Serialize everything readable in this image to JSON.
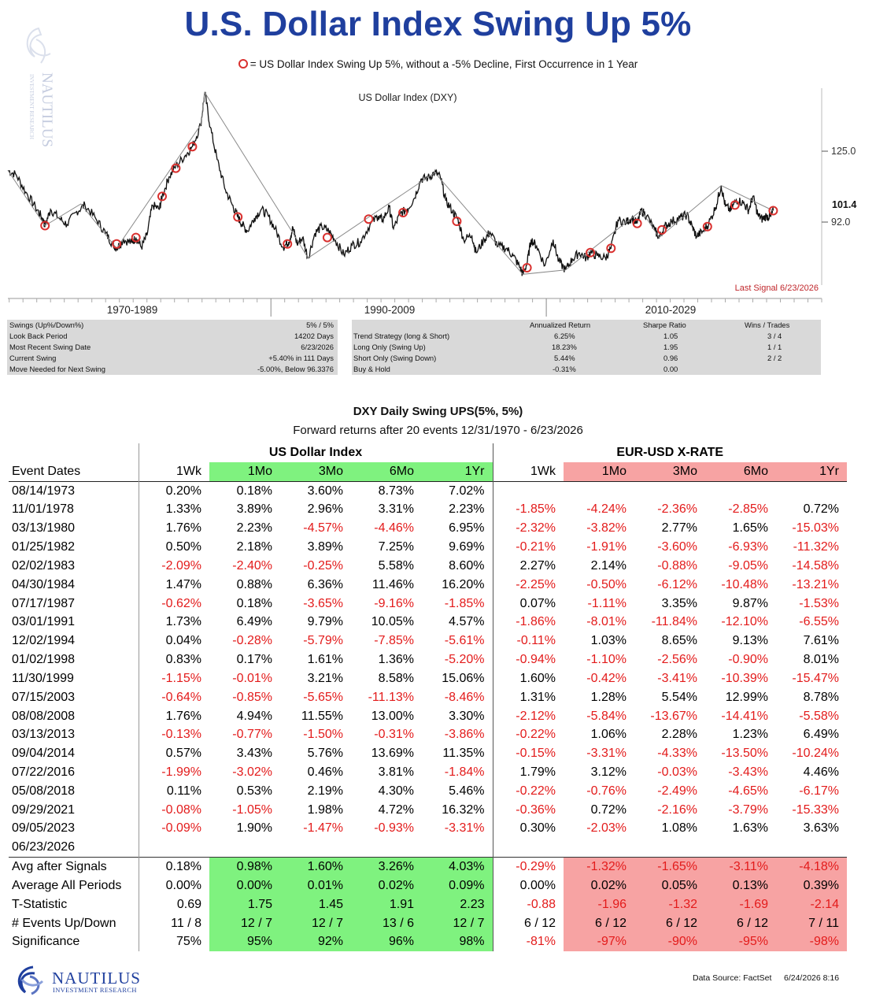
{
  "title": "U.S. Dollar Index Swing Up 5%",
  "legend_note": "= US Dollar Index  Swing Up 5%, without a -5% Decline, First Occurrence in 1 Year",
  "brand": {
    "name": "NAUTILUS",
    "sub": "INVESTMENT RESEARCH",
    "watermark_name": "NAUTILUS",
    "watermark_sub": "INVESTMENT RESEARCH"
  },
  "colors": {
    "title": "#1f3f9e",
    "signal_ring": "#d9312f",
    "line": "#111111",
    "trend": "#8a8a8a",
    "green_fill": "#7ff27f",
    "red_fill": "#f7a3a3",
    "negative_text": "#e31b1b",
    "last_signal_text": "#c0262b"
  },
  "chart_data": {
    "type": "line",
    "title": "US Dollar Index (DXY)",
    "y_ticks": [
      125.0,
      92.0
    ],
    "y_tick_labels": [
      "125.0",
      "92.0"
    ],
    "last_value_label": "101.4",
    "last_signal_note": "Last Signal 6/23/2026",
    "era_labels": [
      "1970-1989",
      "1990-2009",
      "2010-2029"
    ],
    "x_range": [
      1970.9,
      2030.0
    ],
    "y_range": [
      67,
      158
    ],
    "grid": false,
    "series": [
      {
        "values": [
          [
            1970.9,
            120.0
          ],
          [
            1971.5,
            118.0
          ],
          [
            1972.2,
            110.0
          ],
          [
            1972.9,
            103.0
          ],
          [
            1973.4,
            98.0
          ],
          [
            1973.6,
            94.5
          ],
          [
            1974.0,
            102.0
          ],
          [
            1974.6,
            98.0
          ],
          [
            1975.2,
            95.0
          ],
          [
            1975.9,
            101.0
          ],
          [
            1976.5,
            104.0
          ],
          [
            1977.3,
            97.5
          ],
          [
            1978.0,
            91.0
          ],
          [
            1978.5,
            86.0
          ],
          [
            1978.8,
            84.0
          ],
          [
            1979.3,
            88.0
          ],
          [
            1979.9,
            86.5
          ],
          [
            1980.2,
            89.0
          ],
          [
            1980.6,
            84.5
          ],
          [
            1981.0,
            90.0
          ],
          [
            1981.4,
            104.0
          ],
          [
            1981.9,
            102.0
          ],
          [
            1982.1,
            108.0
          ],
          [
            1982.6,
            117.0
          ],
          [
            1983.1,
            122.0
          ],
          [
            1983.8,
            127.0
          ],
          [
            1984.3,
            131.0
          ],
          [
            1984.9,
            141.0
          ],
          [
            1985.2,
            156.0
          ],
          [
            1985.6,
            140.0
          ],
          [
            1986.1,
            125.0
          ],
          [
            1986.7,
            111.0
          ],
          [
            1987.2,
            104.0
          ],
          [
            1987.6,
            98.5
          ],
          [
            1987.9,
            95.0
          ],
          [
            1988.3,
            92.0
          ],
          [
            1988.8,
            98.0
          ],
          [
            1989.3,
            102.0
          ],
          [
            1989.8,
            99.0
          ],
          [
            1990.3,
            93.0
          ],
          [
            1990.9,
            84.5
          ],
          [
            1991.3,
            87.0
          ],
          [
            1991.6,
            93.5
          ],
          [
            1991.9,
            86.0
          ],
          [
            1992.3,
            89.0
          ],
          [
            1992.7,
            79.5
          ],
          [
            1993.2,
            91.0
          ],
          [
            1993.7,
            94.0
          ],
          [
            1994.2,
            92.0
          ],
          [
            1994.7,
            87.5
          ],
          [
            1995.3,
            81.0
          ],
          [
            1995.9,
            85.5
          ],
          [
            1996.5,
            87.0
          ],
          [
            1997.2,
            95.0
          ],
          [
            1997.8,
            99.0
          ],
          [
            1998.1,
            97.0
          ],
          [
            1998.6,
            103.0
          ],
          [
            1998.9,
            93.0
          ],
          [
            1999.4,
            100.0
          ],
          [
            1999.9,
            102.0
          ],
          [
            2000.4,
            107.0
          ],
          [
            2000.9,
            116.0
          ],
          [
            2001.4,
            116.5
          ],
          [
            2001.9,
            119.0
          ],
          [
            2002.3,
            117.0
          ],
          [
            2002.7,
            106.0
          ],
          [
            2003.2,
            101.0
          ],
          [
            2003.6,
            97.0
          ],
          [
            2004.0,
            88.0
          ],
          [
            2004.6,
            90.0
          ],
          [
            2004.9,
            82.0
          ],
          [
            2005.5,
            88.0
          ],
          [
            2005.9,
            91.5
          ],
          [
            2006.5,
            85.0
          ],
          [
            2007.1,
            84.0
          ],
          [
            2007.6,
            80.5
          ],
          [
            2008.1,
            75.0
          ],
          [
            2008.3,
            72.0
          ],
          [
            2008.6,
            77.0
          ],
          [
            2008.9,
            88.0
          ],
          [
            2009.3,
            85.0
          ],
          [
            2009.9,
            76.0
          ],
          [
            2010.5,
            88.0
          ],
          [
            2010.9,
            78.0
          ],
          [
            2011.4,
            74.0
          ],
          [
            2011.9,
            79.0
          ],
          [
            2012.4,
            82.0
          ],
          [
            2012.9,
            79.5
          ],
          [
            2013.2,
            82.0
          ],
          [
            2013.7,
            80.5
          ],
          [
            2014.3,
            79.5
          ],
          [
            2014.7,
            84.0
          ],
          [
            2015.2,
            97.0
          ],
          [
            2015.8,
            96.0
          ],
          [
            2016.2,
            98.0
          ],
          [
            2016.6,
            95.5
          ],
          [
            2016.9,
            101.5
          ],
          [
            2017.3,
            99.0
          ],
          [
            2017.9,
            92.0
          ],
          [
            2018.2,
            89.0
          ],
          [
            2018.6,
            94.0
          ],
          [
            2019.1,
            96.5
          ],
          [
            2019.7,
            98.0
          ],
          [
            2020.2,
            99.5
          ],
          [
            2020.6,
            94.0
          ],
          [
            2020.9,
            89.5
          ],
          [
            2021.4,
            92.0
          ],
          [
            2021.8,
            95.5
          ],
          [
            2022.3,
            103.0
          ],
          [
            2022.7,
            113.0
          ],
          [
            2023.0,
            103.5
          ],
          [
            2023.4,
            101.5
          ],
          [
            2023.8,
            106.5
          ],
          [
            2024.3,
            105.0
          ],
          [
            2024.7,
            101.5
          ],
          [
            2025.0,
            108.0
          ],
          [
            2025.4,
            99.0
          ],
          [
            2025.7,
            97.5
          ],
          [
            2026.0,
            99.0
          ],
          [
            2026.3,
            98.5
          ],
          [
            2026.48,
            101.4
          ]
        ]
      },
      {
        "values": [
          [
            1970.9,
            120.0
          ],
          [
            1973.6,
            94.5
          ],
          [
            1976.2,
            104.5
          ],
          [
            1978.8,
            84.0
          ],
          [
            1984.9,
            141.0
          ],
          [
            1985.2,
            156.0
          ],
          [
            1991.8,
            89.0
          ],
          [
            1992.7,
            79.5
          ],
          [
            2001.9,
            119.0
          ],
          [
            2008.3,
            72.0
          ],
          [
            2011.4,
            74.0
          ],
          [
            2016.9,
            101.5
          ],
          [
            2018.2,
            89.0
          ],
          [
            2022.7,
            113.0
          ],
          [
            2026.48,
            101.4
          ]
        ]
      }
    ],
    "signals": [
      [
        1973.6,
        94.5
      ],
      [
        1978.8,
        86.0
      ],
      [
        1980.2,
        89.0
      ],
      [
        1982.1,
        108.0
      ],
      [
        1983.1,
        121.0
      ],
      [
        1984.3,
        131.0
      ],
      [
        1987.6,
        98.5
      ],
      [
        1991.2,
        86.0
      ],
      [
        1994.1,
        89.0
      ],
      [
        1997.1,
        97.5
      ],
      [
        1999.6,
        100.5
      ],
      [
        2003.5,
        96.5
      ],
      [
        2008.6,
        75.0
      ],
      [
        2013.2,
        82.0
      ],
      [
        2014.7,
        84.0
      ],
      [
        2016.6,
        95.5
      ],
      [
        2018.4,
        92.5
      ],
      [
        2021.7,
        94.0
      ],
      [
        2023.7,
        104.0
      ],
      [
        2026.48,
        101.4
      ]
    ]
  },
  "stats_left": [
    {
      "label": "Swings (Up%/Down%)",
      "value": "5% / 5%"
    },
    {
      "label": "Look Back Period",
      "value": "14202 Days"
    },
    {
      "label": "Most Recent Swing Date",
      "value": "6/23/2026"
    },
    {
      "label": "Current Swing",
      "value": "+5.40% in 111 Days"
    },
    {
      "label": "Move Needed for Next Swing",
      "value": "-5.00%, Below 96.3376"
    }
  ],
  "stats_right": {
    "headers": [
      "Annualized Return",
      "Sharpe Ratio",
      "Wins / Trades"
    ],
    "rows": [
      {
        "label": "Trend Strategy (long & Short)",
        "ret": "6.25%",
        "sharpe": "1.05",
        "wins": "3 / 4"
      },
      {
        "label": "Long Only (Swing Up)",
        "ret": "18.23%",
        "sharpe": "1.95",
        "wins": "1 / 1"
      },
      {
        "label": "Short Only (Swing Down)",
        "ret": "5.44%",
        "sharpe": "0.96",
        "wins": "2 / 2"
      },
      {
        "label": "Buy & Hold",
        "ret": "-0.31%",
        "sharpe": "0.00",
        "wins": ""
      }
    ]
  },
  "table": {
    "title": "DXY Daily Swing UPS(5%, 5%)",
    "subtitle": "Forward returns after 20 events 12/31/1970 - 6/23/2026",
    "group_usd": "US Dollar Index",
    "group_eur": "EUR-USD X-RATE",
    "date_header": "Event Dates",
    "col_headers": [
      "1Wk",
      "1Mo",
      "3Mo",
      "6Mo",
      "1Yr",
      "1Wk",
      "1Mo",
      "3Mo",
      "6Mo",
      "1Yr"
    ],
    "rows": [
      {
        "date": "08/14/1973",
        "v": [
          "0.20%",
          "0.18%",
          "3.60%",
          "8.73%",
          "7.02%",
          "",
          "",
          "",
          "",
          ""
        ]
      },
      {
        "date": "11/01/1978",
        "v": [
          "1.33%",
          "3.89%",
          "2.96%",
          "3.31%",
          "2.23%",
          "-1.85%",
          "-4.24%",
          "-2.36%",
          "-2.85%",
          "0.72%"
        ]
      },
      {
        "date": "03/13/1980",
        "v": [
          "1.76%",
          "2.23%",
          "-4.57%",
          "-4.46%",
          "6.95%",
          "-2.32%",
          "-3.82%",
          "2.77%",
          "1.65%",
          "-15.03%"
        ]
      },
      {
        "date": "01/25/1982",
        "v": [
          "0.50%",
          "2.18%",
          "3.89%",
          "7.25%",
          "9.69%",
          "-0.21%",
          "-1.91%",
          "-3.60%",
          "-6.93%",
          "-11.32%"
        ]
      },
      {
        "date": "02/02/1983",
        "v": [
          "-2.09%",
          "-2.40%",
          "-0.25%",
          "5.58%",
          "8.60%",
          "2.27%",
          "2.14%",
          "-0.88%",
          "-9.05%",
          "-14.58%"
        ]
      },
      {
        "date": "04/30/1984",
        "v": [
          "1.47%",
          "0.88%",
          "6.36%",
          "11.46%",
          "16.20%",
          "-2.25%",
          "-0.50%",
          "-6.12%",
          "-10.48%",
          "-13.21%"
        ]
      },
      {
        "date": "07/17/1987",
        "v": [
          "-0.62%",
          "0.18%",
          "-3.65%",
          "-9.16%",
          "-1.85%",
          "0.07%",
          "-1.11%",
          "3.35%",
          "9.87%",
          "-1.53%"
        ]
      },
      {
        "date": "03/01/1991",
        "v": [
          "1.73%",
          "6.49%",
          "9.79%",
          "10.05%",
          "4.57%",
          "-1.86%",
          "-8.01%",
          "-11.84%",
          "-12.10%",
          "-6.55%"
        ]
      },
      {
        "date": "12/02/1994",
        "v": [
          "0.04%",
          "-0.28%",
          "-5.79%",
          "-7.85%",
          "-5.61%",
          "-0.11%",
          "1.03%",
          "8.65%",
          "9.13%",
          "7.61%"
        ]
      },
      {
        "date": "01/02/1998",
        "v": [
          "0.83%",
          "0.17%",
          "1.61%",
          "1.36%",
          "-5.20%",
          "-0.94%",
          "-1.10%",
          "-2.56%",
          "-0.90%",
          "8.01%"
        ]
      },
      {
        "date": "11/30/1999",
        "v": [
          "-1.15%",
          "-0.01%",
          "3.21%",
          "8.58%",
          "15.06%",
          "1.60%",
          "-0.42%",
          "-3.41%",
          "-10.39%",
          "-15.47%"
        ]
      },
      {
        "date": "07/15/2003",
        "v": [
          "-0.64%",
          "-0.85%",
          "-5.65%",
          "-11.13%",
          "-8.46%",
          "1.31%",
          "1.28%",
          "5.54%",
          "12.99%",
          "8.78%"
        ]
      },
      {
        "date": "08/08/2008",
        "v": [
          "1.76%",
          "4.94%",
          "11.55%",
          "13.00%",
          "3.30%",
          "-2.12%",
          "-5.84%",
          "-13.67%",
          "-14.41%",
          "-5.58%"
        ]
      },
      {
        "date": "03/13/2013",
        "v": [
          "-0.13%",
          "-0.77%",
          "-1.50%",
          "-0.31%",
          "-3.86%",
          "-0.22%",
          "1.06%",
          "2.28%",
          "1.23%",
          "6.49%"
        ]
      },
      {
        "date": "09/04/2014",
        "v": [
          "0.57%",
          "3.43%",
          "5.76%",
          "13.69%",
          "11.35%",
          "-0.15%",
          "-3.31%",
          "-4.33%",
          "-13.50%",
          "-10.24%"
        ]
      },
      {
        "date": "07/22/2016",
        "v": [
          "-1.99%",
          "-3.02%",
          "0.46%",
          "3.81%",
          "-1.84%",
          "1.79%",
          "3.12%",
          "-0.03%",
          "-3.43%",
          "4.46%"
        ]
      },
      {
        "date": "05/08/2018",
        "v": [
          "0.11%",
          "0.53%",
          "2.19%",
          "4.30%",
          "5.46%",
          "-0.22%",
          "-0.76%",
          "-2.49%",
          "-4.65%",
          "-6.17%"
        ]
      },
      {
        "date": "09/29/2021",
        "v": [
          "-0.08%",
          "-1.05%",
          "1.98%",
          "4.72%",
          "16.32%",
          "-0.36%",
          "0.72%",
          "-2.16%",
          "-3.79%",
          "-15.33%"
        ]
      },
      {
        "date": "09/05/2023",
        "v": [
          "-0.09%",
          "1.90%",
          "-1.47%",
          "-0.93%",
          "-3.31%",
          "0.30%",
          "-2.03%",
          "1.08%",
          "1.63%",
          "3.63%"
        ]
      },
      {
        "date": "06/23/2026",
        "v": [
          "",
          "",
          "",
          "",
          "",
          "",
          "",
          "",
          "",
          ""
        ]
      }
    ],
    "summary": [
      {
        "label": "Avg after Signals",
        "v": [
          "0.18%",
          "0.98%",
          "1.60%",
          "3.26%",
          "4.03%",
          "-0.29%",
          "-1.32%",
          "-1.65%",
          "-3.11%",
          "-4.18%"
        ]
      },
      {
        "label": "Average All Periods",
        "v": [
          "0.00%",
          "0.00%",
          "0.01%",
          "0.02%",
          "0.09%",
          "0.00%",
          "0.02%",
          "0.05%",
          "0.13%",
          "0.39%"
        ]
      },
      {
        "label": "T-Statistic",
        "v": [
          "0.69",
          "1.75",
          "1.45",
          "1.91",
          "2.23",
          "-0.88",
          "-1.96",
          "-1.32",
          "-1.69",
          "-2.14"
        ]
      },
      {
        "label": "# Events Up/Down",
        "v": [
          "11 / 8",
          "12 / 7",
          "12 / 7",
          "13 / 6",
          "12 / 7",
          "6 / 12",
          "6 / 12",
          "6 / 12",
          "6 / 12",
          "7 / 11"
        ]
      },
      {
        "label": "Significance",
        "v": [
          "75%",
          "95%",
          "92%",
          "96%",
          "98%",
          "-81%",
          "-97%",
          "-90%",
          "-95%",
          "-98%"
        ]
      }
    ]
  },
  "footer": {
    "data_source": "Data Source: FactSet",
    "timestamp": "6/24/2026 8:16"
  }
}
